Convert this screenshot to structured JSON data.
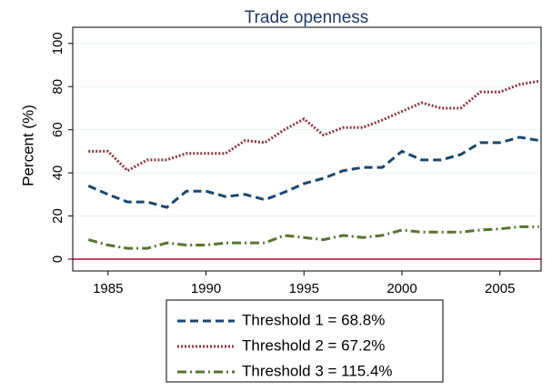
{
  "chart_data": {
    "type": "line",
    "title": "Trade openness",
    "ylabel": "Percent (%)",
    "x": [
      1984,
      1985,
      1986,
      1987,
      1988,
      1989,
      1990,
      1991,
      1992,
      1993,
      1994,
      1995,
      1996,
      1997,
      1998,
      1999,
      2000,
      2001,
      2002,
      2003,
      2004,
      2005,
      2006,
      2007
    ],
    "series": [
      {
        "name": "Threshold 1 = 68.8%",
        "color": "#1a476f",
        "dash": "dash",
        "values": [
          34,
          30,
          26.5,
          26.5,
          24,
          31.5,
          31.5,
          29,
          30,
          27.5,
          31,
          35,
          37.5,
          41,
          42.5,
          42.5,
          50,
          46,
          46,
          48.5,
          54,
          54,
          56.5,
          55
        ]
      },
      {
        "name": "Threshold 2 = 67.2%",
        "color": "#90353b",
        "dash": "dot",
        "values": [
          50,
          50,
          41,
          46,
          46,
          49,
          49,
          49,
          55,
          54,
          60,
          65,
          57.5,
          61,
          61,
          64.5,
          68.5,
          72.5,
          70,
          70,
          77.5,
          77.5,
          81,
          82.5
        ]
      },
      {
        "name": "Threshold 3 = 115.4%",
        "color": "#55752f",
        "dash": "dashdot",
        "values": [
          9,
          6.5,
          5,
          5,
          7.5,
          6.5,
          6.5,
          7.5,
          7.5,
          7.5,
          11,
          10,
          9,
          11,
          10,
          11,
          13.5,
          12.5,
          12.5,
          12.5,
          13.5,
          14,
          15,
          15
        ]
      }
    ],
    "xlim": [
      1983.2,
      2007.1
    ],
    "xticks": [
      1985,
      1990,
      1995,
      2000,
      2005
    ],
    "ylim": [
      -5.5,
      107.5
    ],
    "yticks": [
      0,
      20,
      40,
      60,
      80,
      100
    ],
    "grid": true,
    "zero_line_color": "#c10534",
    "legend": "bottom"
  }
}
